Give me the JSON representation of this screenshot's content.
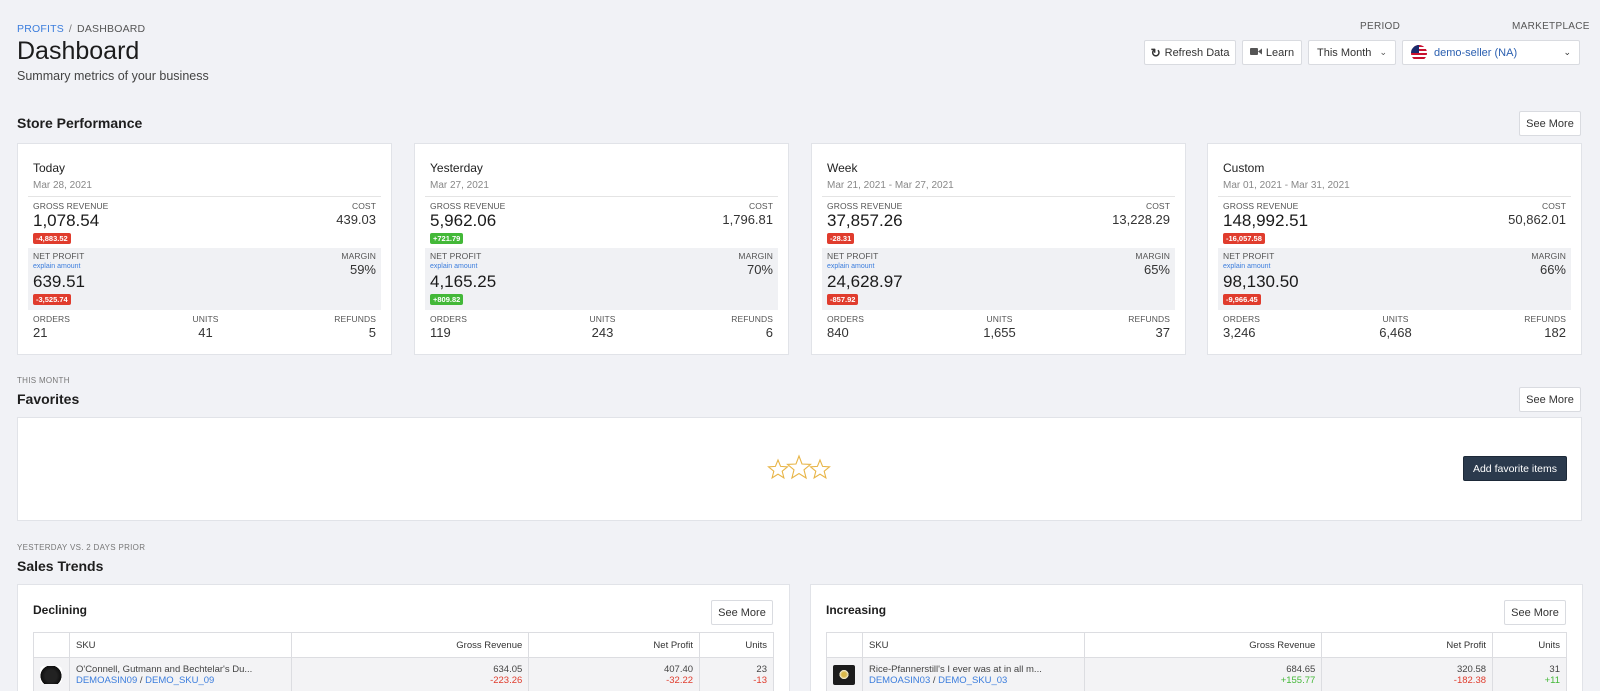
{
  "breadcrumb": {
    "root": "PROFITS",
    "current": "DASHBOARD"
  },
  "page": {
    "title": "Dashboard",
    "subtitle": "Summary metrics of your business"
  },
  "header": {
    "period_label": "PERIOD",
    "marketplace_label": "MARKETPLACE",
    "refresh_label": "Refresh Data",
    "learn_label": "Learn",
    "period_value": "This Month",
    "marketplace_value": "demo-seller (NA)"
  },
  "store_performance": {
    "title": "Store Performance",
    "see_more": "See More",
    "labels": {
      "gross_revenue": "GROSS REVENUE",
      "cost": "COST",
      "net_profit": "NET PROFIT",
      "explain": "explain amount",
      "margin": "MARGIN",
      "orders": "ORDERS",
      "units": "UNITS",
      "refunds": "REFUNDS"
    },
    "cards": [
      {
        "name": "Today",
        "date": "Mar 28, 2021",
        "gross_revenue": "1,078.54",
        "gross_change": "-4,883.52",
        "gross_trend": "red",
        "cost": "439.03",
        "net_profit": "639.51",
        "net_change": "-3,525.74",
        "net_trend": "red",
        "margin": "59%",
        "orders": "21",
        "units": "41",
        "refunds": "5"
      },
      {
        "name": "Yesterday",
        "date": "Mar 27, 2021",
        "gross_revenue": "5,962.06",
        "gross_change": "+721.79",
        "gross_trend": "green",
        "cost": "1,796.81",
        "net_profit": "4,165.25",
        "net_change": "+809.82",
        "net_trend": "green",
        "margin": "70%",
        "orders": "119",
        "units": "243",
        "refunds": "6"
      },
      {
        "name": "Week",
        "date": "Mar 21, 2021 - Mar 27, 2021",
        "gross_revenue": "37,857.26",
        "gross_change": "-28.31",
        "gross_trend": "red",
        "cost": "13,228.29",
        "net_profit": "24,628.97",
        "net_change": "-857.92",
        "net_trend": "red",
        "margin": "65%",
        "orders": "840",
        "units": "1,655",
        "refunds": "37"
      },
      {
        "name": "Custom",
        "date": "Mar 01, 2021 - Mar 31, 2021",
        "gross_revenue": "148,992.51",
        "gross_change": "-16,057.58",
        "gross_trend": "red",
        "cost": "50,862.01",
        "net_profit": "98,130.50",
        "net_change": "-9,966.45",
        "net_trend": "red",
        "margin": "66%",
        "orders": "3,246",
        "units": "6,468",
        "refunds": "182"
      }
    ]
  },
  "favorites": {
    "eyebrow": "THIS MONTH",
    "title": "Favorites",
    "see_more": "See More",
    "add_label": "Add favorite items",
    "icon_color": "#e8b547"
  },
  "sales_trends": {
    "eyebrow": "YESTERDAY VS. 2 DAYS PRIOR",
    "title": "Sales Trends",
    "columns": [
      "SKU",
      "Gross Revenue",
      "Net Profit",
      "Units"
    ],
    "declining": {
      "title": "Declining",
      "see_more": "See More",
      "rows": [
        {
          "name": "O'Connell, Gutmann and Bechtelar's Du...",
          "asin": "DEMOASIN09",
          "sku": "DEMO_SKU_09",
          "gross": "634.05",
          "gross_change": "-223.26",
          "net": "407.40",
          "net_change": "-32.22",
          "units": "23",
          "units_change": "-13"
        }
      ]
    },
    "increasing": {
      "title": "Increasing",
      "see_more": "See More",
      "rows": [
        {
          "name": "Rice-Pfannerstill's I ever was at in all m...",
          "asin": "DEMOASIN03",
          "sku": "DEMO_SKU_03",
          "gross": "684.65",
          "gross_change": "+155.77",
          "net": "320.58",
          "net_change": "-182.38",
          "units": "31",
          "units_change": "+11"
        }
      ]
    }
  }
}
